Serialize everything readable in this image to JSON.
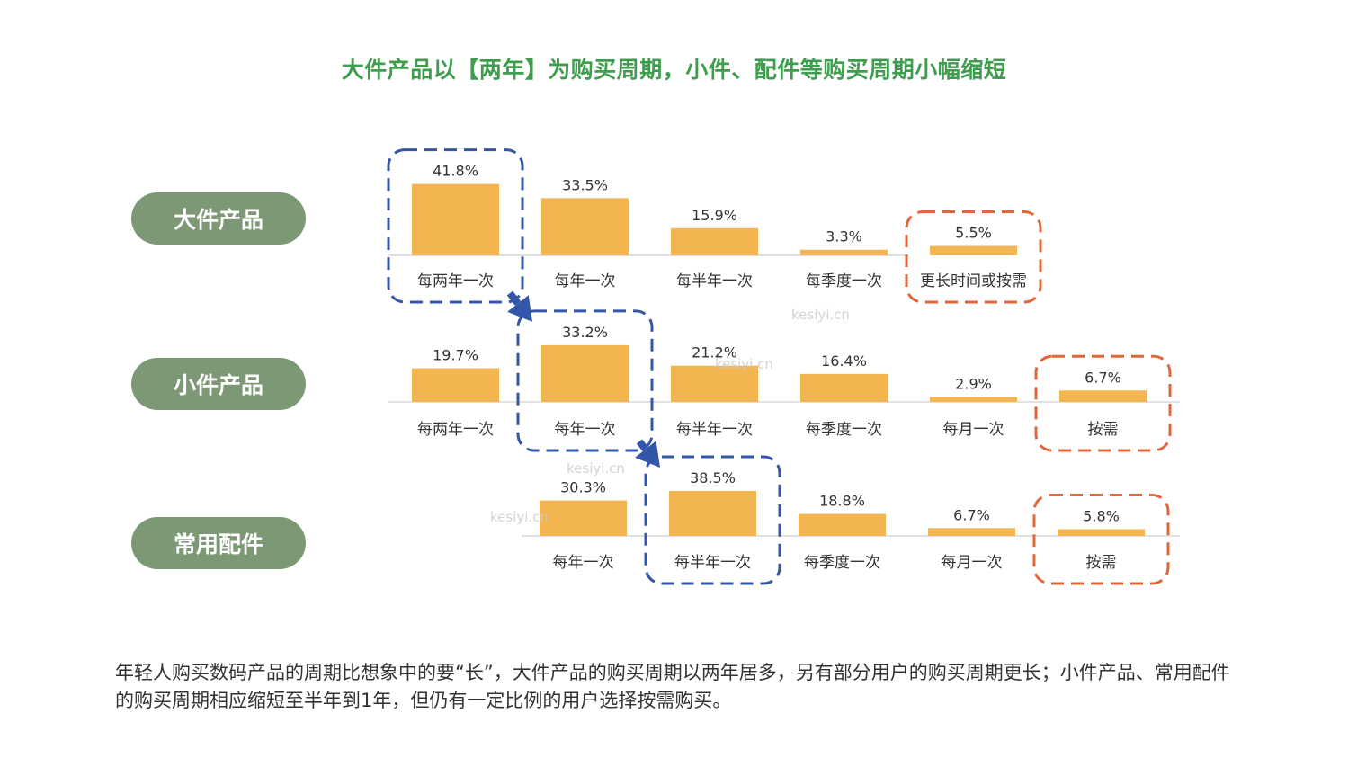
{
  "title": "大件产品以【两年】为购买周期，小件、配件等购买周期小幅缩短",
  "categories_labels": {
    "large": "大件产品",
    "small": "小件产品",
    "accessory": "常用配件"
  },
  "summary": "年轻人购买数码产品的周期比想象中的要“长”，大件产品的购买周期以两年居多，另有部分用户的购买周期更长；小件产品、常用配件的购买周期相应缩短至半年到1年，但仍有一定比例的用户选择按需购买。",
  "watermark": "kesiyi.cn",
  "colors": {
    "title": "#3e9e4e",
    "pill": "#7c9875",
    "bar": "#f2b54f",
    "highlight_blue": "#3356a8",
    "highlight_orange": "#e0673a"
  },
  "chart_data": [
    {
      "type": "bar",
      "name": "大件产品",
      "categories": [
        "每两年一次",
        "每年一次",
        "每半年一次",
        "每季度一次",
        "更长时间或按需"
      ],
      "values": [
        41.8,
        33.5,
        15.9,
        3.3,
        5.5
      ],
      "labels": [
        "41.8%",
        "33.5%",
        "15.9%",
        "3.3%",
        "5.5%"
      ],
      "highlight_blue": [
        0
      ],
      "highlight_orange": [
        4
      ]
    },
    {
      "type": "bar",
      "name": "小件产品",
      "categories": [
        "每两年一次",
        "每年一次",
        "每半年一次",
        "每季度一次",
        "每月一次",
        "按需"
      ],
      "values": [
        19.7,
        33.2,
        21.2,
        16.4,
        2.9,
        6.7
      ],
      "labels": [
        "19.7%",
        "33.2%",
        "21.2%",
        "16.4%",
        "2.9%",
        "6.7%"
      ],
      "highlight_blue": [
        1
      ],
      "highlight_orange": [
        5
      ]
    },
    {
      "type": "bar",
      "name": "常用配件",
      "categories": [
        "每年一次",
        "每半年一次",
        "每季度一次",
        "每月一次",
        "按需"
      ],
      "values": [
        30.3,
        38.5,
        18.8,
        6.7,
        5.8
      ],
      "labels": [
        "30.3%",
        "38.5%",
        "18.8%",
        "6.7%",
        "5.8%"
      ],
      "highlight_blue": [
        1
      ],
      "highlight_orange": [
        4
      ]
    }
  ]
}
